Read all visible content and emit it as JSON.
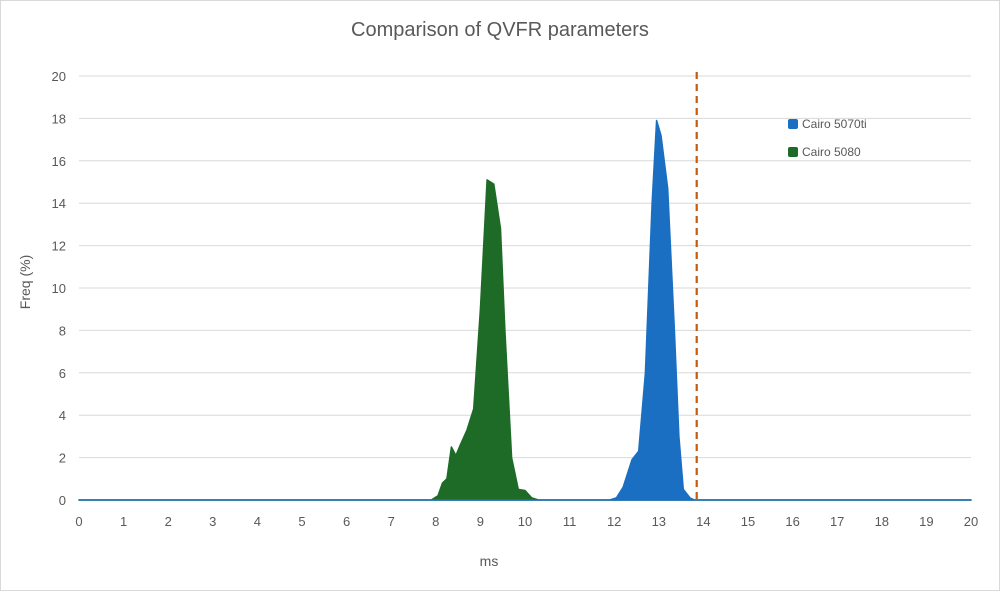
{
  "chart_data": {
    "type": "area",
    "title": "Comparison of QVFR parameters",
    "xlabel": "ms",
    "ylabel": "Freq (%)",
    "xlim": [
      0,
      20
    ],
    "ylim": [
      0,
      20
    ],
    "x_ticks": [
      0,
      1,
      2,
      3,
      4,
      5,
      6,
      7,
      8,
      9,
      10,
      11,
      12,
      13,
      14,
      15,
      16,
      17,
      18,
      19,
      20
    ],
    "y_ticks": [
      0,
      2,
      4,
      6,
      8,
      10,
      12,
      14,
      16,
      18,
      20
    ],
    "grid": true,
    "legend_position": "top-right",
    "reference_line": {
      "x": 13.85,
      "style": "dashed",
      "color": "#c55a11"
    },
    "series": [
      {
        "name": "Cairo 5080",
        "color": "#1e6b27",
        "points": [
          [
            0,
            0
          ],
          [
            7.9,
            0
          ],
          [
            8.05,
            0.2
          ],
          [
            8.15,
            0.8
          ],
          [
            8.25,
            1.0
          ],
          [
            8.35,
            2.5
          ],
          [
            8.45,
            2.1
          ],
          [
            8.55,
            2.6
          ],
          [
            8.7,
            3.3
          ],
          [
            8.85,
            4.3
          ],
          [
            9.0,
            9.0
          ],
          [
            9.15,
            15.1
          ],
          [
            9.3,
            14.9
          ],
          [
            9.45,
            12.8
          ],
          [
            9.55,
            8.0
          ],
          [
            9.7,
            2.0
          ],
          [
            9.85,
            0.5
          ],
          [
            10.0,
            0.45
          ],
          [
            10.15,
            0.1
          ],
          [
            10.3,
            0
          ],
          [
            20,
            0
          ]
        ]
      },
      {
        "name": "Cairo 5070ti",
        "color": "#1a6fc2",
        "points": [
          [
            0,
            0
          ],
          [
            11.9,
            0
          ],
          [
            12.05,
            0.1
          ],
          [
            12.2,
            0.6
          ],
          [
            12.4,
            1.9
          ],
          [
            12.55,
            2.3
          ],
          [
            12.7,
            6.0
          ],
          [
            12.85,
            14.0
          ],
          [
            12.95,
            17.9
          ],
          [
            13.05,
            17.2
          ],
          [
            13.2,
            14.7
          ],
          [
            13.35,
            8.0
          ],
          [
            13.45,
            3.0
          ],
          [
            13.55,
            0.5
          ],
          [
            13.7,
            0.1
          ],
          [
            13.8,
            0
          ],
          [
            20,
            0
          ]
        ]
      }
    ]
  }
}
